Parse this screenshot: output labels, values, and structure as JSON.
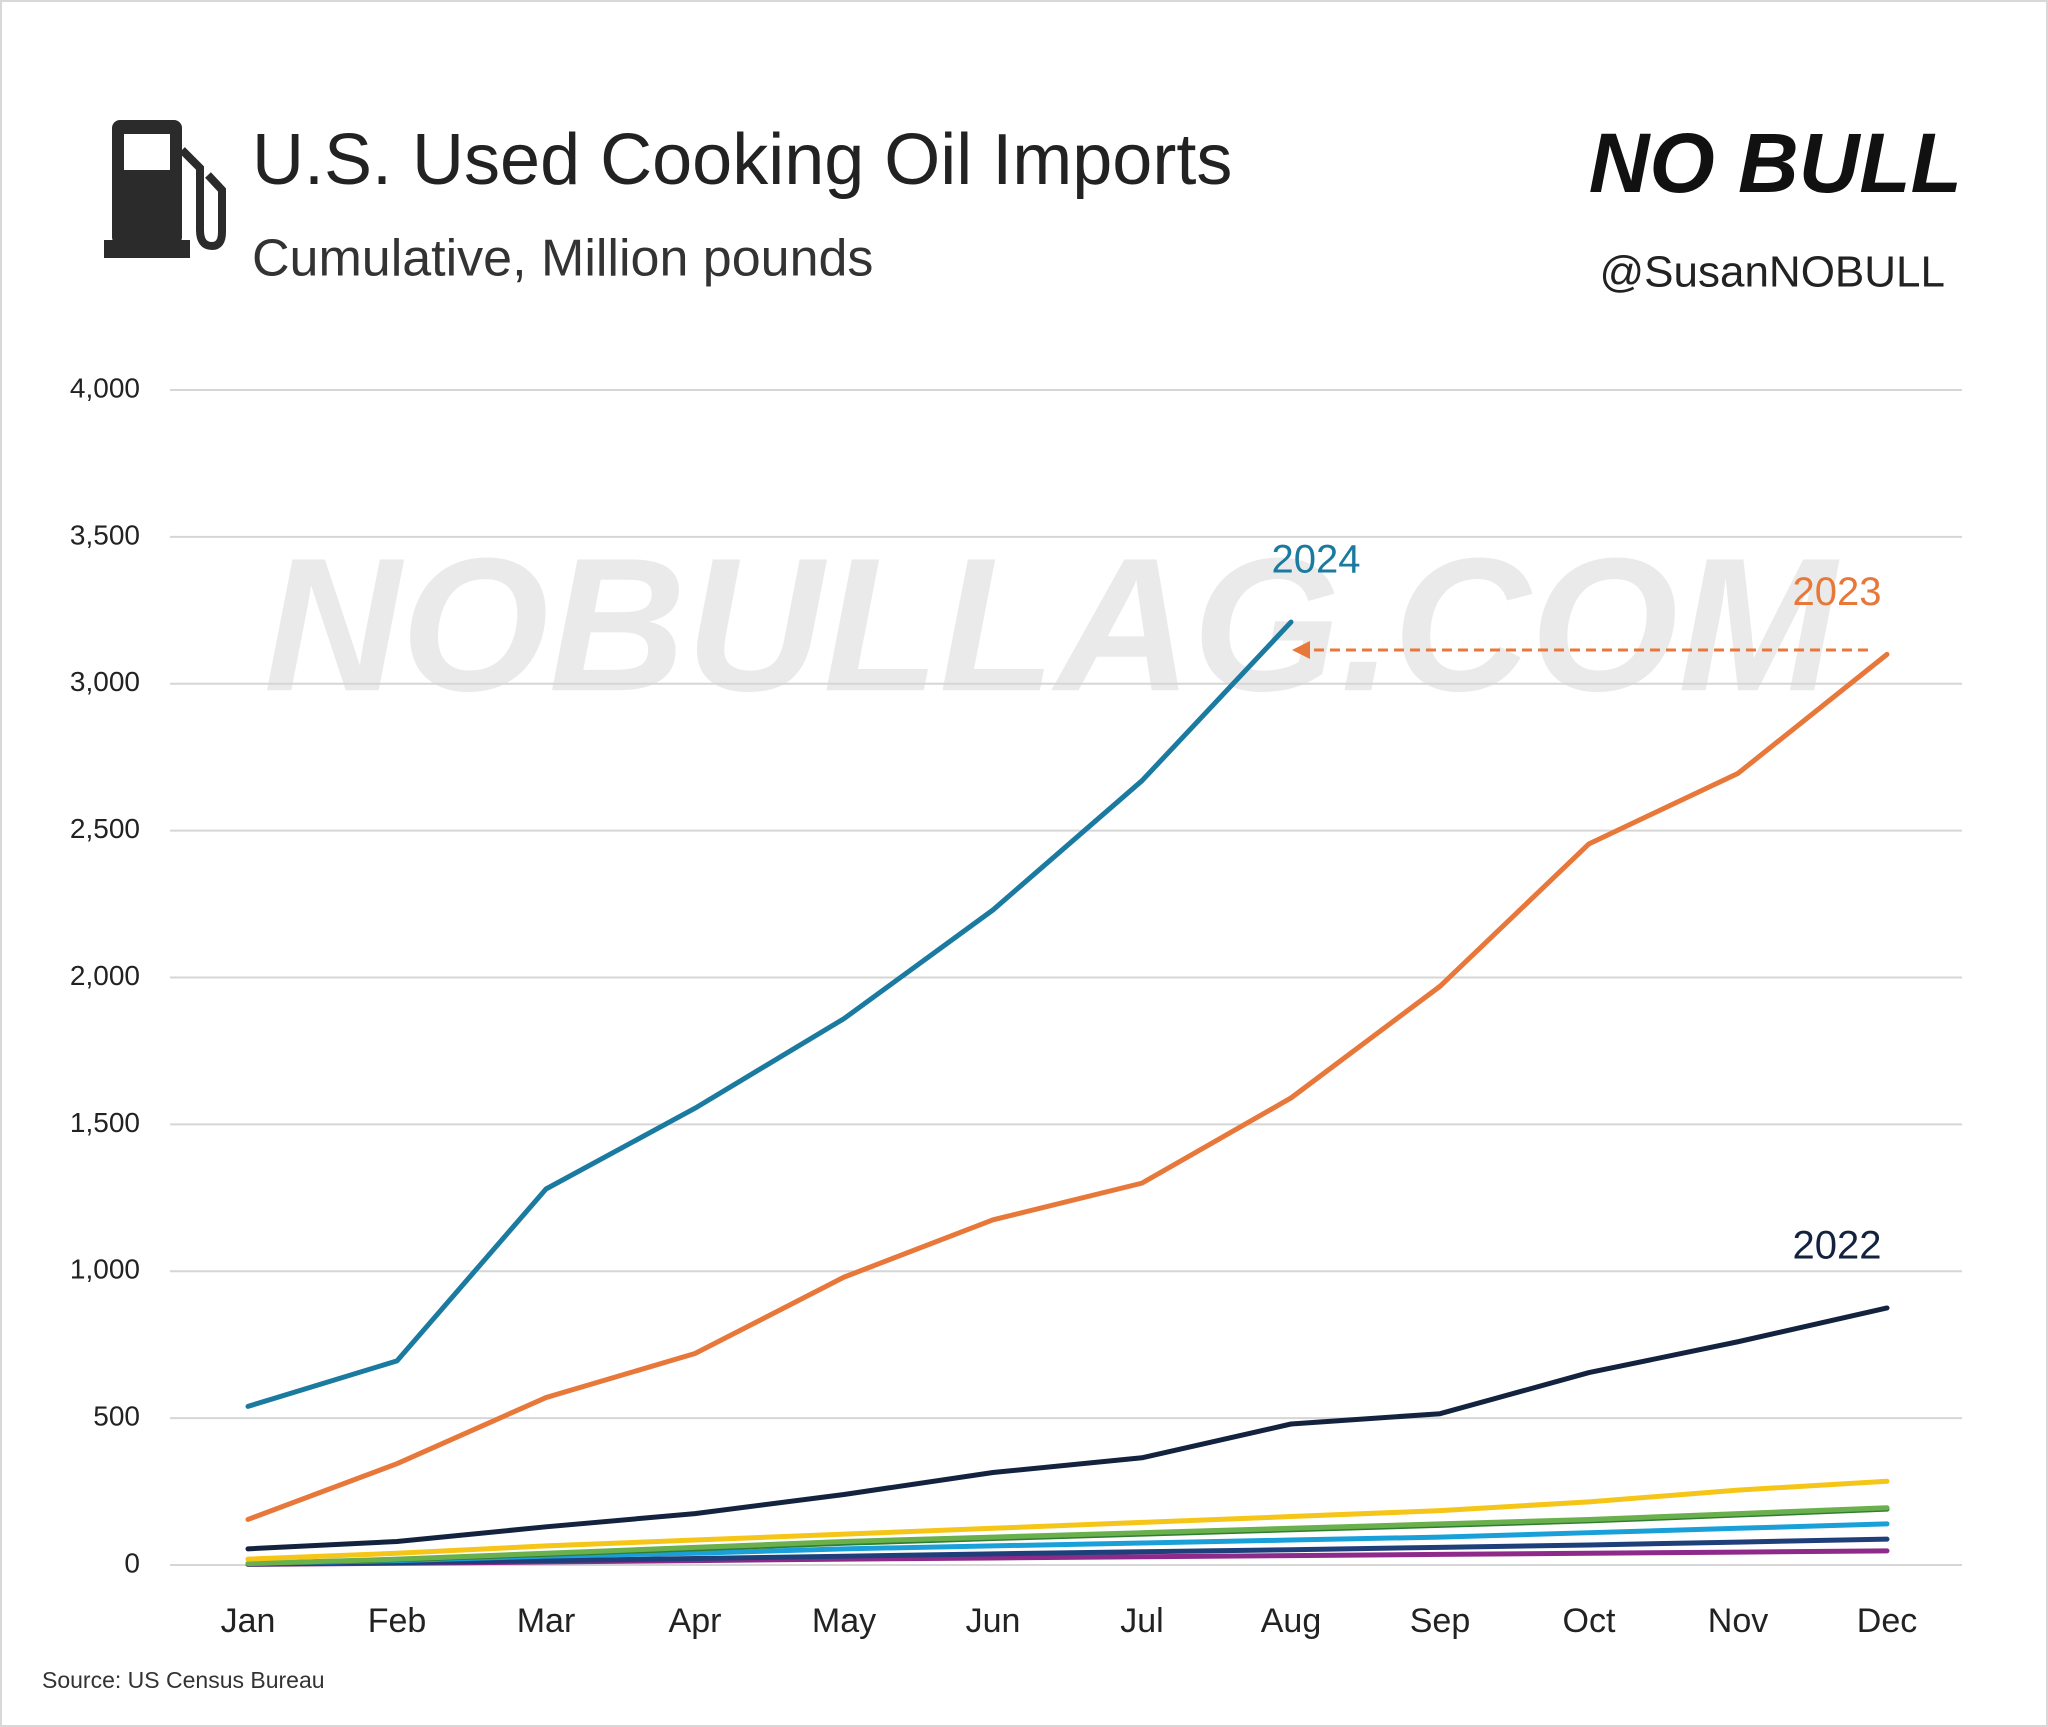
{
  "chart_data": {
    "type": "line",
    "title": "U.S. Used Cooking Oil Imports",
    "subtitle": "Cumulative, Million pounds",
    "logo": "NO BULL",
    "handle": "@SusanNOBULL",
    "watermark": "NOBULLAG.COM",
    "source": "Source:  US Census Bureau",
    "categories": [
      "Jan",
      "Feb",
      "Mar",
      "Apr",
      "May",
      "Jun",
      "Jul",
      "Aug",
      "Sep",
      "Oct",
      "Nov",
      "Dec"
    ],
    "ylim": [
      0,
      4000
    ],
    "yticks": [
      0,
      500,
      {
        "value": 1000,
        "label": "1,000"
      },
      {
        "value": 1500,
        "label": "1,500"
      },
      {
        "value": 2000,
        "label": "2,000"
      },
      {
        "value": 2500,
        "label": "2,500"
      },
      {
        "value": 3000,
        "label": "3,000"
      },
      {
        "value": 3500,
        "label": "3,500"
      },
      {
        "value": 4000,
        "label": "4,000"
      }
    ],
    "grid": true,
    "series": [
      {
        "color": "#8e2a8a",
        "values": [
          2,
          6,
          10,
          15,
          20,
          24,
          28,
          32,
          36,
          40,
          44,
          48
        ]
      },
      {
        "color": "#1f3f7a",
        "values": [
          3,
          8,
          15,
          22,
          30,
          38,
          45,
          52,
          60,
          68,
          78,
          88
        ]
      },
      {
        "color": "#1aa0d8",
        "values": [
          5,
          15,
          30,
          40,
          55,
          65,
          75,
          85,
          95,
          110,
          125,
          140
        ]
      },
      {
        "color": "#2e7d32",
        "values": [
          4,
          18,
          36,
          55,
          74,
          90,
          105,
          120,
          135,
          150,
          170,
          190
        ]
      },
      {
        "color": "#6ab04c",
        "values": [
          5,
          20,
          40,
          60,
          80,
          95,
          110,
          125,
          140,
          155,
          175,
          195
        ]
      },
      {
        "color": "#f5c518",
        "values": [
          20,
          40,
          65,
          85,
          105,
          125,
          145,
          165,
          185,
          215,
          255,
          285
        ]
      },
      {
        "name": "2022",
        "color": "#13233f",
        "values": [
          55,
          80,
          130,
          175,
          240,
          315,
          365,
          480,
          515,
          655,
          760,
          875
        ]
      },
      {
        "name": "2023",
        "color": "#e8773a",
        "values": [
          155,
          345,
          570,
          720,
          980,
          1175,
          1300,
          1590,
          1970,
          2455,
          2695,
          3100
        ]
      },
      {
        "name": "2024",
        "color": "#1a7aa0",
        "values": [
          540,
          695,
          1280,
          1555,
          1860,
          2230,
          2670,
          3210,
          null,
          null,
          null,
          null
        ]
      }
    ]
  }
}
